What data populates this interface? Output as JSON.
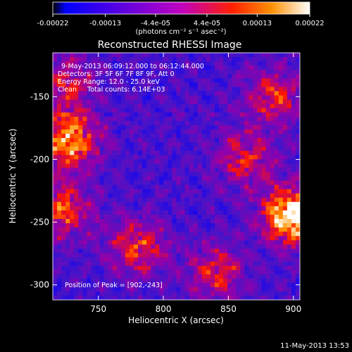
{
  "chart_data": {
    "type": "heatmap",
    "title": "Reconstructed RHESSI Image",
    "xlabel": "Heliocentric X (arcsec)",
    "ylabel": "Heliocentric Y (arcsec)",
    "xlim": [
      715,
      905
    ],
    "ylim": [
      -312,
      -115
    ],
    "x_ticks": [
      750,
      800,
      850,
      900
    ],
    "y_ticks": [
      -300,
      -250,
      -200,
      -150
    ],
    "colorbar": {
      "ticks": [
        "-0.00022",
        "-0.00013",
        "-4.4e-05",
        "4.4e-05",
        "0.00013",
        "0.00022"
      ],
      "tick_values": [
        -0.00022,
        -0.00013,
        -4.4e-05,
        4.4e-05,
        0.00013,
        0.00022
      ],
      "range": [
        -0.00022,
        0.00022
      ],
      "unit_label": "(photons cm⁻² s⁻¹ asec⁻²)",
      "colormap": [
        "#000000",
        "#0000ff",
        "#ff0000",
        "#ffa500",
        "#ffffff"
      ]
    },
    "annotations": [
      "9-May-2013 06:09:12.000 to 06:12:44.000",
      "Detectors: 3F 5F 6F 7F 8F 9F, Att 0",
      "Energy Range: 12.0 - 25.0 keV",
      "Clean     Total counts: 6.14E+03"
    ],
    "peak_label": "Position of Peak = [902,-243]",
    "peak": [
      902,
      -243
    ],
    "bright_regions": [
      {
        "x": 900,
        "y": -245,
        "relative_intensity": 1.0
      },
      {
        "x": 728,
        "y": -185,
        "relative_intensity": 0.75
      },
      {
        "x": 722,
        "y": -240,
        "relative_intensity": 0.55
      },
      {
        "x": 780,
        "y": -270,
        "relative_intensity": 0.5
      },
      {
        "x": 863,
        "y": -200,
        "relative_intensity": 0.45
      },
      {
        "x": 885,
        "y": -150,
        "relative_intensity": 0.45
      },
      {
        "x": 840,
        "y": -290,
        "relative_intensity": 0.45
      },
      {
        "x": 725,
        "y": -140,
        "relative_intensity": 0.4
      }
    ]
  },
  "footer": {
    "timestamp": "11-May-2013 13:53"
  }
}
